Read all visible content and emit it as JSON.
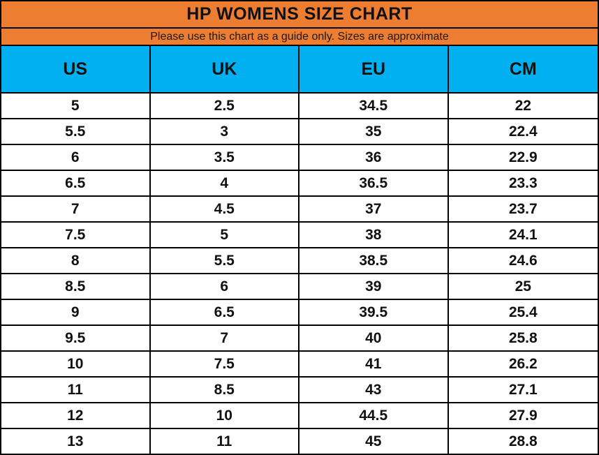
{
  "colors": {
    "title_band": "#ED7D31",
    "header_band": "#00B0F0",
    "border": "#000000",
    "row_background": "#FFFFFF",
    "text": "#111111"
  },
  "chart_data": {
    "type": "table",
    "title": "HP WOMENS SIZE CHART",
    "subtitle": "Please use this chart as a guide only. Sizes are approximate",
    "columns": [
      "US",
      "UK",
      "EU",
      "CM"
    ],
    "rows": [
      [
        "5",
        "2.5",
        "34.5",
        "22"
      ],
      [
        "5.5",
        "3",
        "35",
        "22.4"
      ],
      [
        "6",
        "3.5",
        "36",
        "22.9"
      ],
      [
        "6.5",
        "4",
        "36.5",
        "23.3"
      ],
      [
        "7",
        "4.5",
        "37",
        "23.7"
      ],
      [
        "7.5",
        "5",
        "38",
        "24.1"
      ],
      [
        "8",
        "5.5",
        "38.5",
        "24.6"
      ],
      [
        "8.5",
        "6",
        "39",
        "25"
      ],
      [
        "9",
        "6.5",
        "39.5",
        "25.4"
      ],
      [
        "9.5",
        "7",
        "40",
        "25.8"
      ],
      [
        "10",
        "7.5",
        "41",
        "26.2"
      ],
      [
        "11",
        "8.5",
        "43",
        "27.1"
      ],
      [
        "12",
        "10",
        "44.5",
        "27.9"
      ],
      [
        "13",
        "11",
        "45",
        "28.8"
      ]
    ]
  }
}
